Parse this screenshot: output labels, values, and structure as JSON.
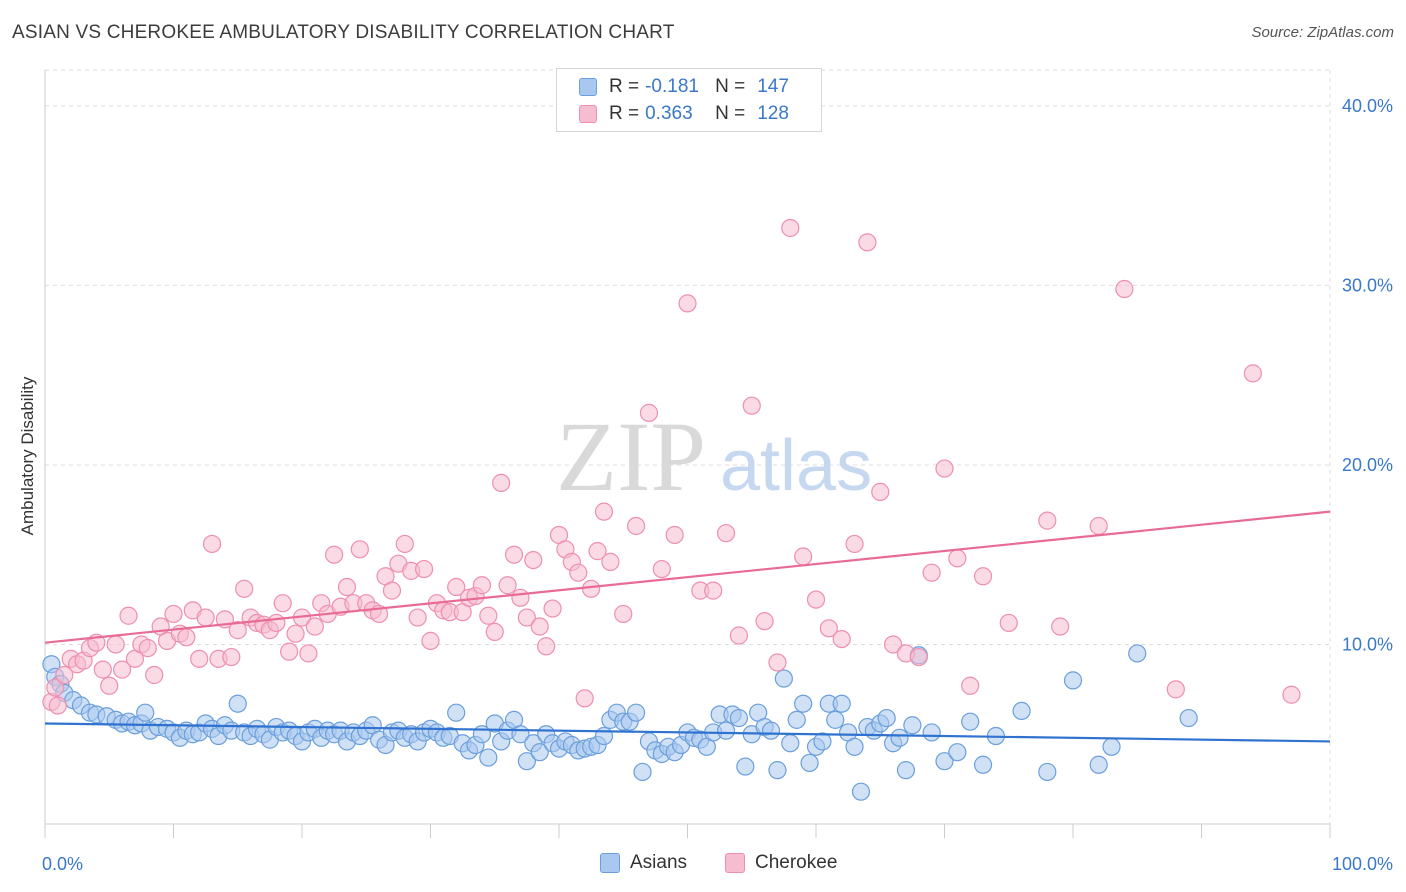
{
  "title": "ASIAN VS CHEROKEE AMBULATORY DISABILITY CORRELATION CHART",
  "source": "Source: ZipAtlas.com",
  "watermark": {
    "zip": "ZIP",
    "atlas": "atlas"
  },
  "legend": {
    "rows": [
      {
        "r_label": "R =",
        "r_value": "-0.181",
        "n_label": "N =",
        "n_value": "147"
      },
      {
        "r_label": "R =",
        "r_value": "0.363",
        "n_label": "N =",
        "n_value": "128"
      }
    ]
  },
  "bottom_legend": [
    "Asians",
    "Cherokee"
  ],
  "colors": {
    "asian_fill": "#a9c8ef",
    "asian_stroke": "#6a9fdc",
    "asian_line": "#2f72d0",
    "cherokee_fill": "#f6bcd0",
    "cherokee_stroke": "#ee8fae",
    "cherokee_line": "#e86b96",
    "tick_label": "#3a78c9",
    "grid": "#dddddd"
  },
  "chart_data": {
    "type": "scatter",
    "title": "ASIAN VS CHEROKEE AMBULATORY DISABILITY CORRELATION CHART",
    "xlabel": "",
    "ylabel": "Ambulatory Disability",
    "xlim": [
      0,
      100
    ],
    "ylim": [
      0,
      42
    ],
    "x_tick_labels": [
      {
        "value": 0,
        "label": "0.0%"
      },
      {
        "value": 100,
        "label": "100.0%"
      }
    ],
    "y_tick_labels": [
      {
        "value": 10,
        "label": "10.0%"
      },
      {
        "value": 20,
        "label": "20.0%"
      },
      {
        "value": 30,
        "label": "30.0%"
      },
      {
        "value": 40,
        "label": "40.0%"
      }
    ],
    "grid": "horizontal dashed",
    "legend_placement": "top-center",
    "series": [
      {
        "name": "Asians",
        "trend": {
          "x": [
            0,
            100
          ],
          "y": [
            5.6,
            4.6
          ]
        },
        "points": [
          [
            0.5,
            8.9
          ],
          [
            0.8,
            8.2
          ],
          [
            1.2,
            7.8
          ],
          [
            1.5,
            7.3
          ],
          [
            2.2,
            6.9
          ],
          [
            2.8,
            6.6
          ],
          [
            3.5,
            6.2
          ],
          [
            4,
            6.1
          ],
          [
            4.8,
            6
          ],
          [
            5.5,
            5.8
          ],
          [
            6,
            5.6
          ],
          [
            6.5,
            5.7
          ],
          [
            7,
            5.5
          ],
          [
            7.5,
            5.6
          ],
          [
            7.8,
            6.2
          ],
          [
            8.2,
            5.2
          ],
          [
            8.8,
            5.4
          ],
          [
            9.5,
            5.3
          ],
          [
            10,
            5.1
          ],
          [
            10.5,
            4.8
          ],
          [
            11,
            5.2
          ],
          [
            11.5,
            5
          ],
          [
            12,
            5.1
          ],
          [
            12.5,
            5.6
          ],
          [
            13,
            5.3
          ],
          [
            13.5,
            4.9
          ],
          [
            14,
            5.5
          ],
          [
            14.5,
            5.2
          ],
          [
            15,
            6.7
          ],
          [
            15.5,
            5.1
          ],
          [
            16,
            4.9
          ],
          [
            16.5,
            5.3
          ],
          [
            17,
            5
          ],
          [
            17.5,
            4.7
          ],
          [
            18,
            5.4
          ],
          [
            18.5,
            5.1
          ],
          [
            19,
            5.2
          ],
          [
            19.5,
            4.9
          ],
          [
            20,
            4.6
          ],
          [
            20.5,
            5.1
          ],
          [
            21,
            5.3
          ],
          [
            21.5,
            4.8
          ],
          [
            22,
            5.2
          ],
          [
            22.5,
            5
          ],
          [
            23,
            5.2
          ],
          [
            23.5,
            4.6
          ],
          [
            24,
            5.1
          ],
          [
            24.5,
            4.9
          ],
          [
            25,
            5.2
          ],
          [
            25.5,
            5.5
          ],
          [
            26,
            4.7
          ],
          [
            26.5,
            4.4
          ],
          [
            27,
            5.1
          ],
          [
            27.5,
            5.2
          ],
          [
            28,
            4.8
          ],
          [
            28.5,
            5
          ],
          [
            29,
            4.6
          ],
          [
            29.5,
            5.1
          ],
          [
            30,
            5.3
          ],
          [
            30.5,
            5.1
          ],
          [
            31,
            4.8
          ],
          [
            31.5,
            4.9
          ],
          [
            32,
            6.2
          ],
          [
            32.5,
            4.5
          ],
          [
            33,
            4.1
          ],
          [
            33.5,
            4.4
          ],
          [
            34,
            5
          ],
          [
            34.5,
            3.7
          ],
          [
            35,
            5.6
          ],
          [
            35.5,
            4.6
          ],
          [
            36,
            5.2
          ],
          [
            36.5,
            5.8
          ],
          [
            37,
            5
          ],
          [
            37.5,
            3.5
          ],
          [
            38,
            4.5
          ],
          [
            38.5,
            4
          ],
          [
            39,
            5
          ],
          [
            39.5,
            4.5
          ],
          [
            40,
            4.2
          ],
          [
            40.5,
            4.6
          ],
          [
            41,
            4.4
          ],
          [
            41.5,
            4.1
          ],
          [
            42,
            4.2
          ],
          [
            42.5,
            4.3
          ],
          [
            43,
            4.4
          ],
          [
            43.5,
            4.9
          ],
          [
            44,
            5.8
          ],
          [
            44.5,
            6.2
          ],
          [
            45,
            5.7
          ],
          [
            45.5,
            5.7
          ],
          [
            46,
            6.2
          ],
          [
            46.5,
            2.9
          ],
          [
            47,
            4.6
          ],
          [
            47.5,
            4.1
          ],
          [
            48,
            3.9
          ],
          [
            48.5,
            4.3
          ],
          [
            49,
            4
          ],
          [
            49.5,
            4.4
          ],
          [
            50,
            5.1
          ],
          [
            50.5,
            4.8
          ],
          [
            51,
            4.7
          ],
          [
            51.5,
            4.3
          ],
          [
            52,
            5.1
          ],
          [
            52.5,
            6.1
          ],
          [
            53,
            5.2
          ],
          [
            53.5,
            6.1
          ],
          [
            54,
            5.9
          ],
          [
            54.5,
            3.2
          ],
          [
            55,
            5
          ],
          [
            55.5,
            6.2
          ],
          [
            56,
            5.4
          ],
          [
            56.5,
            5.2
          ],
          [
            57,
            3
          ],
          [
            57.5,
            8.1
          ],
          [
            58,
            4.5
          ],
          [
            58.5,
            5.8
          ],
          [
            59,
            6.7
          ],
          [
            59.5,
            3.4
          ],
          [
            60,
            4.3
          ],
          [
            60.5,
            4.6
          ],
          [
            61,
            6.7
          ],
          [
            61.5,
            5.8
          ],
          [
            62,
            6.7
          ],
          [
            62.5,
            5.1
          ],
          [
            63,
            4.3
          ],
          [
            63.5,
            1.8
          ],
          [
            64,
            5.4
          ],
          [
            64.5,
            5.2
          ],
          [
            65,
            5.6
          ],
          [
            65.5,
            5.9
          ],
          [
            66,
            4.5
          ],
          [
            66.5,
            4.8
          ],
          [
            67,
            3
          ],
          [
            67.5,
            5.5
          ],
          [
            68,
            9.4
          ],
          [
            69,
            5.1
          ],
          [
            70,
            3.5
          ],
          [
            71,
            4
          ],
          [
            72,
            5.7
          ],
          [
            73,
            3.3
          ],
          [
            74,
            4.9
          ],
          [
            76,
            6.3
          ],
          [
            78,
            2.9
          ],
          [
            80,
            8
          ],
          [
            82,
            3.3
          ],
          [
            83,
            4.3
          ],
          [
            85,
            9.5
          ],
          [
            89,
            5.9
          ]
        ]
      },
      {
        "name": "Cherokee",
        "trend": {
          "x": [
            0,
            100
          ],
          "y": [
            10.1,
            17.4
          ]
        },
        "points": [
          [
            0.5,
            6.8
          ],
          [
            0.8,
            7.6
          ],
          [
            1,
            6.6
          ],
          [
            1.5,
            8.3
          ],
          [
            2,
            9.2
          ],
          [
            2.5,
            8.9
          ],
          [
            3,
            9.1
          ],
          [
            3.5,
            9.8
          ],
          [
            4,
            10.1
          ],
          [
            4.5,
            8.6
          ],
          [
            5,
            7.7
          ],
          [
            5.5,
            10
          ],
          [
            6,
            8.6
          ],
          [
            6.5,
            11.6
          ],
          [
            7,
            9.2
          ],
          [
            7.5,
            10
          ],
          [
            8,
            9.8
          ],
          [
            8.5,
            8.3
          ],
          [
            9,
            11
          ],
          [
            9.5,
            10.2
          ],
          [
            10,
            11.7
          ],
          [
            10.5,
            10.6
          ],
          [
            11,
            10.4
          ],
          [
            11.5,
            11.9
          ],
          [
            12,
            9.2
          ],
          [
            12.5,
            11.5
          ],
          [
            13,
            15.6
          ],
          [
            13.5,
            9.2
          ],
          [
            14,
            11.4
          ],
          [
            14.5,
            9.3
          ],
          [
            15,
            10.8
          ],
          [
            15.5,
            13.1
          ],
          [
            16,
            11.5
          ],
          [
            16.5,
            11.2
          ],
          [
            17,
            11.1
          ],
          [
            17.5,
            10.8
          ],
          [
            18,
            11.2
          ],
          [
            18.5,
            12.3
          ],
          [
            19,
            9.6
          ],
          [
            19.5,
            10.6
          ],
          [
            20,
            11.5
          ],
          [
            20.5,
            9.5
          ],
          [
            21,
            11
          ],
          [
            21.5,
            12.3
          ],
          [
            22,
            11.7
          ],
          [
            22.5,
            15
          ],
          [
            23,
            12.1
          ],
          [
            23.5,
            13.2
          ],
          [
            24,
            12.3
          ],
          [
            24.5,
            15.3
          ],
          [
            25,
            12.3
          ],
          [
            25.5,
            11.9
          ],
          [
            26,
            11.7
          ],
          [
            26.5,
            13.8
          ],
          [
            27,
            13
          ],
          [
            27.5,
            14.5
          ],
          [
            28,
            15.6
          ],
          [
            28.5,
            14.1
          ],
          [
            29,
            11.5
          ],
          [
            29.5,
            14.2
          ],
          [
            30,
            10.2
          ],
          [
            30.5,
            12.3
          ],
          [
            31,
            11.9
          ],
          [
            31.5,
            11.8
          ],
          [
            32,
            13.2
          ],
          [
            32.5,
            11.8
          ],
          [
            33,
            12.6
          ],
          [
            33.5,
            12.7
          ],
          [
            34,
            13.3
          ],
          [
            34.5,
            11.6
          ],
          [
            35,
            10.7
          ],
          [
            35.5,
            19
          ],
          [
            36,
            13.3
          ],
          [
            36.5,
            15
          ],
          [
            37,
            12.6
          ],
          [
            37.5,
            11.5
          ],
          [
            38,
            14.7
          ],
          [
            38.5,
            11
          ],
          [
            39,
            9.9
          ],
          [
            39.5,
            12
          ],
          [
            40,
            16.1
          ],
          [
            40.5,
            15.3
          ],
          [
            41,
            14.6
          ],
          [
            41.5,
            14
          ],
          [
            42,
            7
          ],
          [
            42.5,
            13.1
          ],
          [
            43,
            15.2
          ],
          [
            43.5,
            17.4
          ],
          [
            44,
            14.6
          ],
          [
            45,
            11.7
          ],
          [
            46,
            16.6
          ],
          [
            47,
            22.9
          ],
          [
            48,
            14.2
          ],
          [
            49,
            16.1
          ],
          [
            50,
            29
          ],
          [
            51,
            13
          ],
          [
            52,
            13
          ],
          [
            53,
            16.2
          ],
          [
            54,
            10.5
          ],
          [
            55,
            23.3
          ],
          [
            56,
            11.3
          ],
          [
            57,
            9
          ],
          [
            58,
            33.2
          ],
          [
            59,
            14.9
          ],
          [
            60,
            12.5
          ],
          [
            61,
            10.9
          ],
          [
            62,
            10.3
          ],
          [
            63,
            15.6
          ],
          [
            64,
            32.4
          ],
          [
            65,
            18.5
          ],
          [
            66,
            10
          ],
          [
            67,
            9.5
          ],
          [
            68,
            9.3
          ],
          [
            69,
            14
          ],
          [
            70,
            19.8
          ],
          [
            71,
            14.8
          ],
          [
            72,
            7.7
          ],
          [
            73,
            13.8
          ],
          [
            75,
            11.2
          ],
          [
            78,
            16.9
          ],
          [
            79,
            11
          ],
          [
            82,
            16.6
          ],
          [
            84,
            29.8
          ],
          [
            88,
            7.5
          ],
          [
            94,
            25.1
          ],
          [
            97,
            7.2
          ]
        ]
      }
    ]
  }
}
